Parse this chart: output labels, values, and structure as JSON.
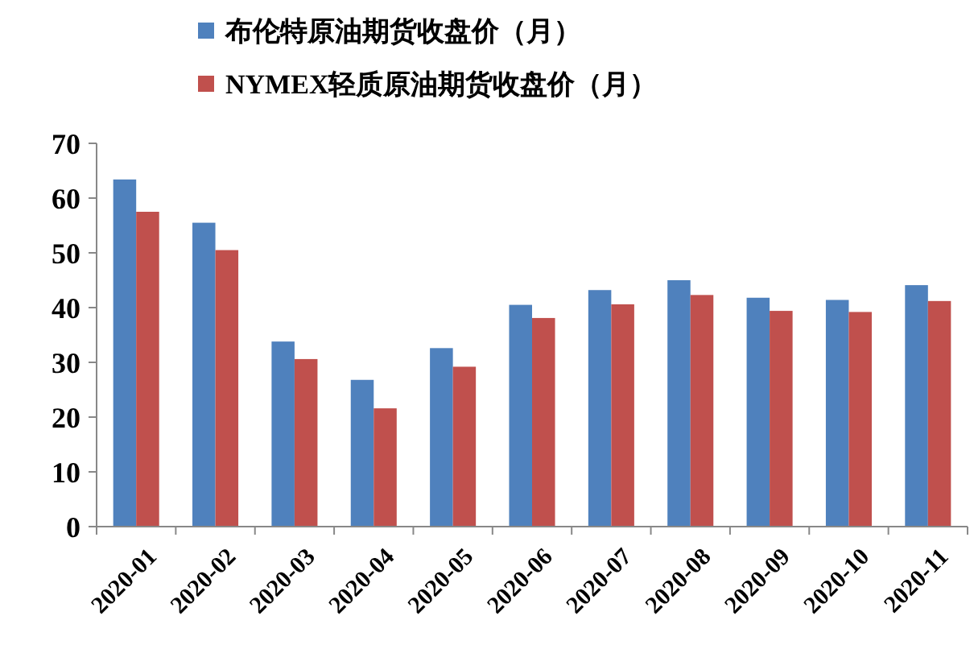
{
  "chart_data": {
    "type": "bar",
    "categories": [
      "2020-01",
      "2020-02",
      "2020-03",
      "2020-04",
      "2020-05",
      "2020-06",
      "2020-07",
      "2020-08",
      "2020-09",
      "2020-10",
      "2020-11"
    ],
    "series": [
      {
        "name": "布伦特原油期货收盘价（月）",
        "color": "#4f81bd",
        "values": [
          63.4,
          55.5,
          33.8,
          26.8,
          32.6,
          40.5,
          43.2,
          45.0,
          41.8,
          41.4,
          44.1
        ]
      },
      {
        "name": "NYMEX轻质原油期货收盘价（月）",
        "color": "#c0504d",
        "values": [
          57.5,
          50.5,
          30.6,
          21.6,
          29.2,
          38.1,
          40.6,
          42.3,
          39.4,
          39.2,
          41.2
        ]
      }
    ],
    "ylim": [
      0,
      70
    ],
    "yticks": [
      0,
      10,
      20,
      30,
      40,
      50,
      60,
      70
    ],
    "grid": false,
    "legend": "top"
  }
}
